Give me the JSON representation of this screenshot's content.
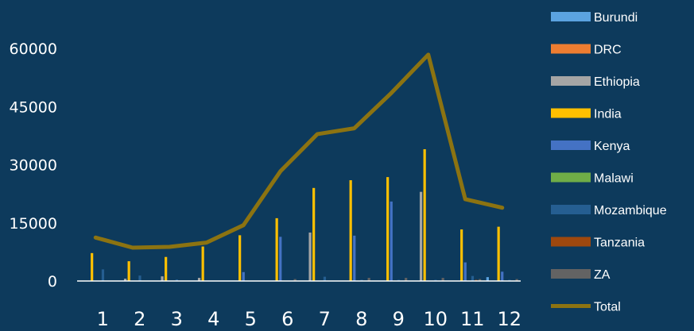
{
  "chart_data": {
    "type": "bar",
    "categories": [
      "1",
      "2",
      "3",
      "4",
      "5",
      "6",
      "7",
      "8",
      "9",
      "10",
      "11",
      "12"
    ],
    "ylim": [
      0,
      60000
    ],
    "yticks": [
      "0",
      "15000",
      "30000",
      "45000",
      "60000"
    ],
    "grid": false,
    "legend_position": "right",
    "series": [
      {
        "name": "Burundi",
        "color": "#5ba3e0",
        "type": "bar",
        "values": [
          0,
          0,
          0,
          0,
          0,
          0,
          0,
          0,
          0,
          0,
          0,
          1000
        ]
      },
      {
        "name": "DRC",
        "color": "#ed7d31",
        "type": "bar",
        "values": [
          0,
          0,
          0,
          0,
          0,
          0,
          0,
          0,
          0,
          0,
          0,
          0
        ]
      },
      {
        "name": "Ethiopia",
        "color": "#a5a5a5",
        "type": "bar",
        "values": [
          0,
          600,
          1200,
          800,
          0,
          0,
          12500,
          0,
          0,
          23000,
          0,
          0
        ]
      },
      {
        "name": "India",
        "color": "#ffc000",
        "type": "bar",
        "values": [
          7200,
          5100,
          6200,
          8900,
          11800,
          16200,
          24000,
          26000,
          26800,
          34000,
          13300,
          14000
        ]
      },
      {
        "name": "Kenya",
        "color": "#4472c4",
        "type": "bar",
        "values": [
          0,
          0,
          0,
          0,
          2300,
          11400,
          0,
          11700,
          20500,
          0,
          4800,
          2400
        ]
      },
      {
        "name": "Malawi",
        "color": "#70ad47",
        "type": "bar",
        "values": [
          0,
          0,
          0,
          0,
          0,
          0,
          0,
          0,
          0,
          0,
          0,
          0
        ]
      },
      {
        "name": "Mozambique",
        "color": "#255e91",
        "type": "bar",
        "values": [
          3000,
          1400,
          400,
          0,
          0,
          0,
          1100,
          300,
          300,
          300,
          1300,
          300
        ]
      },
      {
        "name": "Tanzania",
        "color": "#9e480e",
        "type": "bar",
        "values": [
          0,
          0,
          0,
          0,
          0,
          0,
          0,
          0,
          0,
          0,
          300,
          0
        ]
      },
      {
        "name": "ZA",
        "color": "#636363",
        "type": "bar",
        "values": [
          0,
          0,
          0,
          0,
          0,
          500,
          0,
          800,
          800,
          800,
          500,
          500
        ]
      },
      {
        "name": "Total",
        "color": "#8c7311",
        "type": "line",
        "values": [
          11200,
          8600,
          8800,
          9900,
          14400,
          28300,
          37900,
          39400,
          48500,
          58400,
          21100,
          18900
        ]
      }
    ]
  }
}
